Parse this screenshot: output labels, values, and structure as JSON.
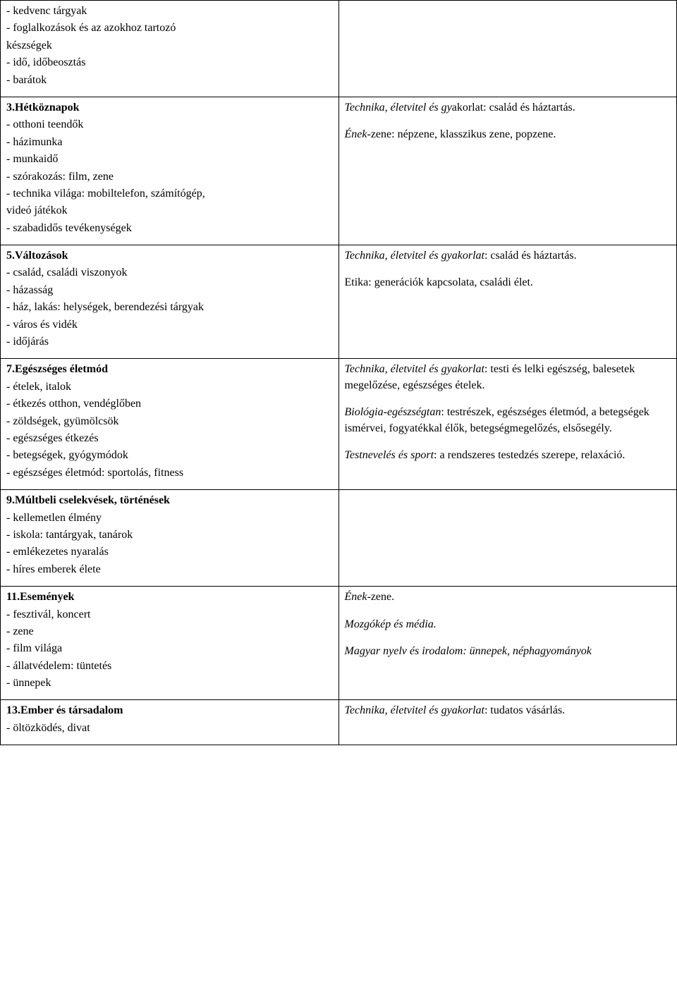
{
  "table": {
    "border_color": "#000000",
    "background_color": "#ffffff",
    "font_family": "Times New Roman",
    "font_size_pt": 12
  },
  "row1": {
    "left": {
      "lines": [
        "- kedvenc tárgyak",
        "- foglalkozások és az azokhoz tartozó",
        "készségek",
        "- idő, időbeosztás",
        "- barátok"
      ]
    },
    "right": ""
  },
  "row2": {
    "left": {
      "title": "3.Hétköznapok",
      "lines": [
        "- otthoni teendők",
        "- házimunka",
        "- munkaidő",
        "- szórakozás: film, zene",
        "- technika világa: mobiltelefon, számítógép,",
        "videó játékok",
        "- szabadidős tevékenységek"
      ]
    },
    "right": {
      "p1_it": "Technika, életvitel és gy",
      "p1_rest": "akorlat: család és háztartás.",
      "p2_it": "Ének-",
      "p2_rest": "zene: népzene, klasszikus zene, popzene."
    }
  },
  "row3": {
    "left": {
      "title": "5.Változások",
      "lines": [
        "- család, családi viszonyok",
        "- házasság",
        "- ház, lakás: helységek, berendezési tárgyak",
        "- város és vidék",
        "- időjárás"
      ]
    },
    "right": {
      "p1_it": "Technika, életvitel és gyakorlat",
      "p1_rest": ": család és háztartás.",
      "p2_full": "Etika: generációk kapcsolata, családi élet."
    }
  },
  "row4": {
    "left": {
      "title": "7.Egészséges életmód",
      "lines": [
        "- ételek, italok",
        "- étkezés otthon, vendéglőben",
        "- zöldségek, gyümölcsök",
        "- egészséges étkezés",
        "- betegségek, gyógymódok",
        "- egészséges életmód: sportolás, fitness"
      ]
    },
    "right": {
      "p1_it": "Technika, életvitel és gyakorlat",
      "p1_rest": ": testi és lelki egészség, balesetek megelőzése, egészséges ételek.",
      "p2_it": "Biológia-egészségtan",
      "p2_rest": ": testrészek, egészséges életmód, a betegségek ismérvei, fogyatékkal élők, betegségmegelőzés, elsősegély.",
      "p3_it": "Testnevelés és sport",
      "p3_rest": ": a rendszeres testedzés szerepe, relaxáció."
    }
  },
  "row5": {
    "left": {
      "title": "9.Múltbeli cselekvések, történések",
      "lines": [
        "- kellemetlen élmény",
        "- iskola: tantárgyak, tanárok",
        "- emlékezetes nyaralás",
        "- híres emberek élete"
      ]
    },
    "right": ""
  },
  "row6": {
    "left": {
      "title": "11.Események",
      "lines": [
        "- fesztivál, koncert",
        "- zene",
        "- film világa",
        "- állatvédelem: tüntetés",
        "- ünnepek"
      ]
    },
    "right": {
      "p1_it": "Ének-",
      "p1_rest": "zene.",
      "p2_it": "Mozgókép és média.",
      "p3_it": "Magyar nyelv és irodalom: ünnepek, néphagyományok"
    }
  },
  "row7": {
    "left": {
      "title": "13.Ember és társadalom",
      "lines": [
        "- öltözködés, divat"
      ]
    },
    "right": {
      "p1_it": "Technika, életvitel és gyakorlat",
      "p1_rest": ": tudatos vásárlás."
    }
  }
}
